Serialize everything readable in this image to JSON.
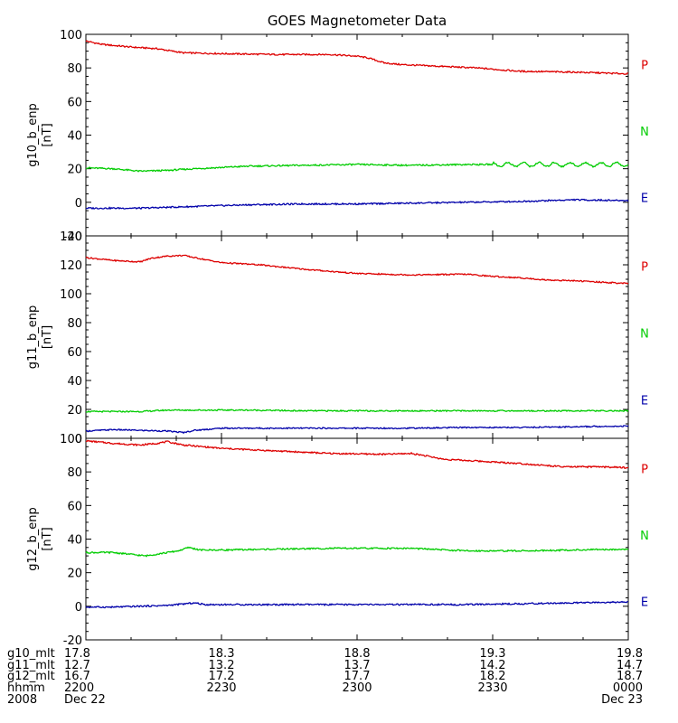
{
  "chart_data": {
    "title": "GOES Magnetometer Data",
    "type": "line",
    "x": {
      "range": [
        2200,
        0
      ],
      "tick_labels": [
        "2200",
        "2230",
        "2300",
        "2330",
        "0000"
      ],
      "date_labels": [
        "Dec 22",
        "Dec 23"
      ]
    },
    "bottom_rows": [
      {
        "label": "g10_mlt",
        "values": [
          "17.8",
          "18.3",
          "18.8",
          "19.3",
          "19.8"
        ]
      },
      {
        "label": "g11_mlt",
        "values": [
          "12.7",
          "13.2",
          "13.7",
          "14.2",
          "14.7"
        ]
      },
      {
        "label": "g12_mlt",
        "values": [
          "16.7",
          "17.2",
          "17.7",
          "18.2",
          "18.7"
        ]
      },
      {
        "label": "hhmm",
        "values": [
          "2200",
          "2230",
          "2300",
          "2330",
          "0000"
        ]
      },
      {
        "label": "2008",
        "values": [
          "Dec 22",
          "",
          "",
          "",
          "Dec 23"
        ]
      }
    ],
    "colors": {
      "P": "#dd0000",
      "N": "#00cc00",
      "E": "#0000aa"
    },
    "panels": [
      {
        "ylabel": "g10_b_enp",
        "unit": "[nT]",
        "ylim": [
          -20,
          100
        ],
        "yticks": [
          -20,
          0,
          20,
          40,
          60,
          80,
          100
        ],
        "series": [
          {
            "name": "P",
            "points": [
              [
                0,
                96
              ],
              [
                0.03,
                94
              ],
              [
                0.08,
                92.5
              ],
              [
                0.13,
                91.5
              ],
              [
                0.18,
                89
              ],
              [
                0.25,
                88.5
              ],
              [
                0.35,
                88
              ],
              [
                0.45,
                88
              ],
              [
                0.5,
                87
              ],
              [
                0.52,
                86
              ],
              [
                0.55,
                83
              ],
              [
                0.58,
                82
              ],
              [
                0.65,
                81
              ],
              [
                0.72,
                80
              ],
              [
                0.8,
                78
              ],
              [
                0.9,
                77.5
              ],
              [
                1.0,
                76.5
              ]
            ]
          },
          {
            "name": "N",
            "points": [
              [
                0,
                20.5
              ],
              [
                0.05,
                20
              ],
              [
                0.1,
                18.5
              ],
              [
                0.15,
                19
              ],
              [
                0.2,
                20
              ],
              [
                0.3,
                21.5
              ],
              [
                0.4,
                22
              ],
              [
                0.5,
                22.5
              ],
              [
                0.6,
                22
              ],
              [
                0.7,
                22.5
              ],
              [
                0.8,
                22.5
              ],
              [
                0.9,
                22.5
              ],
              [
                1.0,
                22.5
              ]
            ]
          },
          {
            "name": "E",
            "points": [
              [
                0,
                -3.5
              ],
              [
                0.1,
                -3.5
              ],
              [
                0.2,
                -2.5
              ],
              [
                0.3,
                -1.5
              ],
              [
                0.4,
                -1
              ],
              [
                0.5,
                -1
              ],
              [
                0.6,
                -0.5
              ],
              [
                0.7,
                0
              ],
              [
                0.8,
                0.5
              ],
              [
                0.85,
                1
              ],
              [
                0.9,
                1.5
              ],
              [
                1.0,
                1
              ]
            ]
          }
        ]
      },
      {
        "ylabel": "g11_b_enp",
        "unit": "[nT]",
        "ylim": [
          0,
          140
        ],
        "yticks": [
          0,
          20,
          40,
          60,
          80,
          100,
          120,
          140
        ],
        "series": [
          {
            "name": "P",
            "points": [
              [
                0,
                125
              ],
              [
                0.05,
                123
              ],
              [
                0.1,
                122
              ],
              [
                0.12,
                124.5
              ],
              [
                0.15,
                126
              ],
              [
                0.18,
                126.5
              ],
              [
                0.2,
                125
              ],
              [
                0.25,
                121.5
              ],
              [
                0.32,
                120
              ],
              [
                0.4,
                117
              ],
              [
                0.45,
                115.5
              ],
              [
                0.5,
                114
              ],
              [
                0.6,
                113
              ],
              [
                0.7,
                113.5
              ],
              [
                0.75,
                112
              ],
              [
                0.8,
                111
              ],
              [
                0.85,
                109.5
              ],
              [
                0.9,
                109
              ],
              [
                1.0,
                107
              ]
            ]
          },
          {
            "name": "N",
            "points": [
              [
                0,
                18.5
              ],
              [
                0.1,
                18.5
              ],
              [
                0.15,
                19.5
              ],
              [
                0.2,
                19.5
              ],
              [
                0.3,
                19.5
              ],
              [
                0.4,
                19
              ],
              [
                0.5,
                19
              ],
              [
                0.6,
                19
              ],
              [
                0.7,
                19
              ],
              [
                0.8,
                19
              ],
              [
                0.9,
                19
              ],
              [
                1.0,
                19
              ]
            ]
          },
          {
            "name": "E",
            "points": [
              [
                0,
                5
              ],
              [
                0.05,
                6
              ],
              [
                0.1,
                5.5
              ],
              [
                0.15,
                5
              ],
              [
                0.18,
                4
              ],
              [
                0.2,
                5.5
              ],
              [
                0.25,
                7
              ],
              [
                0.3,
                7
              ],
              [
                0.4,
                7
              ],
              [
                0.5,
                7
              ],
              [
                0.6,
                7
              ],
              [
                0.7,
                7.5
              ],
              [
                0.8,
                7.5
              ],
              [
                0.9,
                8
              ],
              [
                1.0,
                8.5
              ]
            ]
          }
        ]
      },
      {
        "ylabel": "g12_b_enp",
        "unit": "[nT]",
        "ylim": [
          -20,
          100
        ],
        "yticks": [
          -20,
          0,
          20,
          40,
          60,
          80,
          100
        ],
        "series": [
          {
            "name": "P",
            "points": [
              [
                0,
                98.5
              ],
              [
                0.05,
                97
              ],
              [
                0.1,
                96
              ],
              [
                0.13,
                97
              ],
              [
                0.15,
                98
              ],
              [
                0.18,
                96
              ],
              [
                0.25,
                94
              ],
              [
                0.35,
                92.5
              ],
              [
                0.45,
                91
              ],
              [
                0.55,
                90.5
              ],
              [
                0.6,
                91
              ],
              [
                0.62,
                90
              ],
              [
                0.66,
                87.5
              ],
              [
                0.72,
                86.5
              ],
              [
                0.8,
                85
              ],
              [
                0.88,
                83
              ],
              [
                0.95,
                83
              ],
              [
                1.0,
                82.5
              ]
            ]
          },
          {
            "name": "N",
            "points": [
              [
                0,
                32
              ],
              [
                0.05,
                32
              ],
              [
                0.08,
                31
              ],
              [
                0.11,
                30
              ],
              [
                0.14,
                31.5
              ],
              [
                0.17,
                33
              ],
              [
                0.19,
                35
              ],
              [
                0.21,
                33.5
              ],
              [
                0.25,
                33.5
              ],
              [
                0.35,
                34
              ],
              [
                0.45,
                34.5
              ],
              [
                0.5,
                34.5
              ],
              [
                0.55,
                34.5
              ],
              [
                0.6,
                34.5
              ],
              [
                0.7,
                33
              ],
              [
                0.8,
                33
              ],
              [
                0.9,
                33.5
              ],
              [
                1.0,
                34
              ]
            ]
          },
          {
            "name": "E",
            "points": [
              [
                0,
                -0.5
              ],
              [
                0.05,
                -0.5
              ],
              [
                0.1,
                0
              ],
              [
                0.15,
                0.5
              ],
              [
                0.2,
                2
              ],
              [
                0.22,
                1
              ],
              [
                0.25,
                1
              ],
              [
                0.3,
                1
              ],
              [
                0.4,
                1
              ],
              [
                0.5,
                1
              ],
              [
                0.6,
                1
              ],
              [
                0.7,
                1
              ],
              [
                0.8,
                1.5
              ],
              [
                0.9,
                2
              ],
              [
                1.0,
                2.5
              ]
            ]
          }
        ]
      }
    ]
  }
}
